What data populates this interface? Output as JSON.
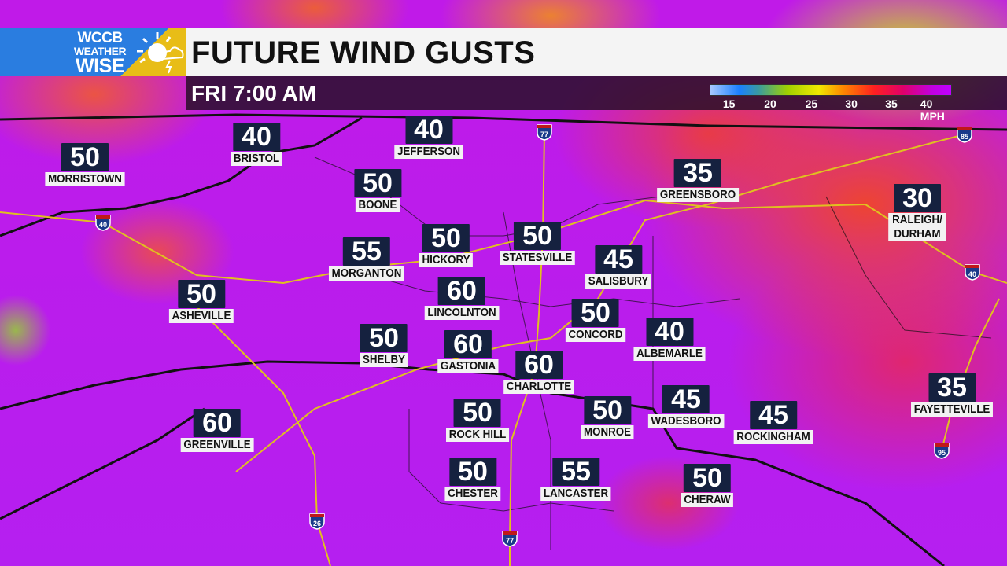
{
  "logo": {
    "line1": "WCCB",
    "line2": "WEATHER",
    "line3": "WISE",
    "icon": "sun-cloud-lightning-icon"
  },
  "header": {
    "title": "FUTURE WIND GUSTS",
    "subtitle": "FRI 7:00 AM"
  },
  "legend": {
    "ticks": [
      "15",
      "20",
      "25",
      "30",
      "35",
      "40 MPH"
    ],
    "colors": [
      "#a8c8ff",
      "#1a80ff",
      "#a0d000",
      "#f0e800",
      "#ff8800",
      "#ff2020",
      "#e0006a",
      "#c000ff"
    ]
  },
  "cities": [
    {
      "name": "MORRISTOWN",
      "value": "50"
    },
    {
      "name": "BRISTOL",
      "value": "40"
    },
    {
      "name": "JEFFERSON",
      "value": "40"
    },
    {
      "name": "BOONE",
      "value": "50"
    },
    {
      "name": "GREENSBORO",
      "value": "35"
    },
    {
      "name": "RALEIGH/ DURHAM",
      "value": "30"
    },
    {
      "name": "MORGANTON",
      "value": "55"
    },
    {
      "name": "HICKORY",
      "value": "50"
    },
    {
      "name": "STATESVILLE",
      "value": "50"
    },
    {
      "name": "SALISBURY",
      "value": "45"
    },
    {
      "name": "ASHEVILLE",
      "value": "50"
    },
    {
      "name": "LINCOLNTON",
      "value": "60"
    },
    {
      "name": "CONCORD",
      "value": "50"
    },
    {
      "name": "ALBEMARLE",
      "value": "40"
    },
    {
      "name": "SHELBY",
      "value": "50"
    },
    {
      "name": "GASTONIA",
      "value": "60"
    },
    {
      "name": "CHARLOTTE",
      "value": "60"
    },
    {
      "name": "WADESBORO",
      "value": "45"
    },
    {
      "name": "MONROE",
      "value": "50"
    },
    {
      "name": "ROCKINGHAM",
      "value": "45"
    },
    {
      "name": "FAYETTEVILLE",
      "value": "35"
    },
    {
      "name": "GREENVILLE",
      "value": "60"
    },
    {
      "name": "ROCK HILL",
      "value": "50"
    },
    {
      "name": "CHESTER",
      "value": "50"
    },
    {
      "name": "LANCASTER",
      "value": "55"
    },
    {
      "name": "CHERAW",
      "value": "50"
    }
  ],
  "interstates": [
    "77",
    "85",
    "40",
    "40",
    "95",
    "26",
    "77"
  ]
}
